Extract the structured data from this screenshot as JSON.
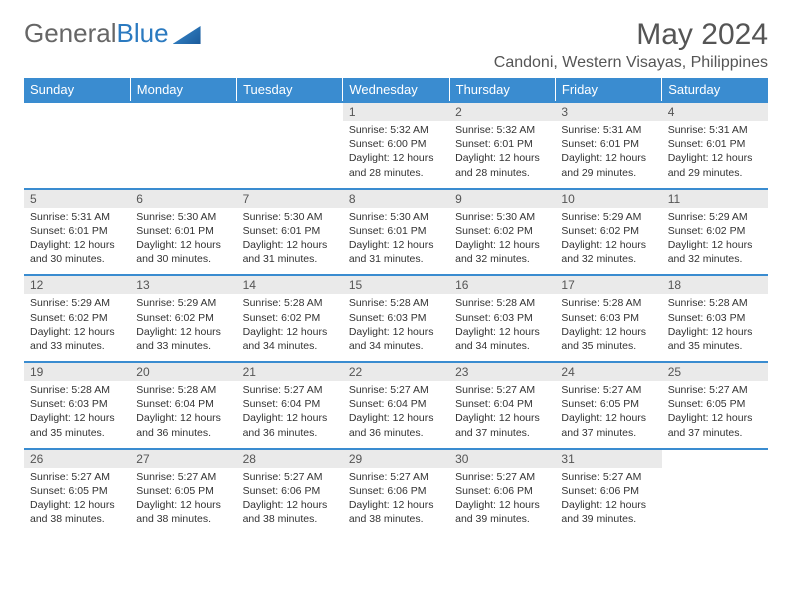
{
  "logo": {
    "part1": "General",
    "part2": "Blue"
  },
  "title": "May 2024",
  "location": "Candoni, Western Visayas, Philippines",
  "colors": {
    "header_bg": "#3a8cd0",
    "daynum_bg": "#eaeaea",
    "border": "#3a8cd0",
    "text": "#333333"
  },
  "weekdays": [
    "Sunday",
    "Monday",
    "Tuesday",
    "Wednesday",
    "Thursday",
    "Friday",
    "Saturday"
  ],
  "weeks": [
    [
      {
        "n": "",
        "lines": []
      },
      {
        "n": "",
        "lines": []
      },
      {
        "n": "",
        "lines": []
      },
      {
        "n": "1",
        "lines": [
          "Sunrise: 5:32 AM",
          "Sunset: 6:00 PM",
          "Daylight: 12 hours",
          "and 28 minutes."
        ]
      },
      {
        "n": "2",
        "lines": [
          "Sunrise: 5:32 AM",
          "Sunset: 6:01 PM",
          "Daylight: 12 hours",
          "and 28 minutes."
        ]
      },
      {
        "n": "3",
        "lines": [
          "Sunrise: 5:31 AM",
          "Sunset: 6:01 PM",
          "Daylight: 12 hours",
          "and 29 minutes."
        ]
      },
      {
        "n": "4",
        "lines": [
          "Sunrise: 5:31 AM",
          "Sunset: 6:01 PM",
          "Daylight: 12 hours",
          "and 29 minutes."
        ]
      }
    ],
    [
      {
        "n": "5",
        "lines": [
          "Sunrise: 5:31 AM",
          "Sunset: 6:01 PM",
          "Daylight: 12 hours",
          "and 30 minutes."
        ]
      },
      {
        "n": "6",
        "lines": [
          "Sunrise: 5:30 AM",
          "Sunset: 6:01 PM",
          "Daylight: 12 hours",
          "and 30 minutes."
        ]
      },
      {
        "n": "7",
        "lines": [
          "Sunrise: 5:30 AM",
          "Sunset: 6:01 PM",
          "Daylight: 12 hours",
          "and 31 minutes."
        ]
      },
      {
        "n": "8",
        "lines": [
          "Sunrise: 5:30 AM",
          "Sunset: 6:01 PM",
          "Daylight: 12 hours",
          "and 31 minutes."
        ]
      },
      {
        "n": "9",
        "lines": [
          "Sunrise: 5:30 AM",
          "Sunset: 6:02 PM",
          "Daylight: 12 hours",
          "and 32 minutes."
        ]
      },
      {
        "n": "10",
        "lines": [
          "Sunrise: 5:29 AM",
          "Sunset: 6:02 PM",
          "Daylight: 12 hours",
          "and 32 minutes."
        ]
      },
      {
        "n": "11",
        "lines": [
          "Sunrise: 5:29 AM",
          "Sunset: 6:02 PM",
          "Daylight: 12 hours",
          "and 32 minutes."
        ]
      }
    ],
    [
      {
        "n": "12",
        "lines": [
          "Sunrise: 5:29 AM",
          "Sunset: 6:02 PM",
          "Daylight: 12 hours",
          "and 33 minutes."
        ]
      },
      {
        "n": "13",
        "lines": [
          "Sunrise: 5:29 AM",
          "Sunset: 6:02 PM",
          "Daylight: 12 hours",
          "and 33 minutes."
        ]
      },
      {
        "n": "14",
        "lines": [
          "Sunrise: 5:28 AM",
          "Sunset: 6:02 PM",
          "Daylight: 12 hours",
          "and 34 minutes."
        ]
      },
      {
        "n": "15",
        "lines": [
          "Sunrise: 5:28 AM",
          "Sunset: 6:03 PM",
          "Daylight: 12 hours",
          "and 34 minutes."
        ]
      },
      {
        "n": "16",
        "lines": [
          "Sunrise: 5:28 AM",
          "Sunset: 6:03 PM",
          "Daylight: 12 hours",
          "and 34 minutes."
        ]
      },
      {
        "n": "17",
        "lines": [
          "Sunrise: 5:28 AM",
          "Sunset: 6:03 PM",
          "Daylight: 12 hours",
          "and 35 minutes."
        ]
      },
      {
        "n": "18",
        "lines": [
          "Sunrise: 5:28 AM",
          "Sunset: 6:03 PM",
          "Daylight: 12 hours",
          "and 35 minutes."
        ]
      }
    ],
    [
      {
        "n": "19",
        "lines": [
          "Sunrise: 5:28 AM",
          "Sunset: 6:03 PM",
          "Daylight: 12 hours",
          "and 35 minutes."
        ]
      },
      {
        "n": "20",
        "lines": [
          "Sunrise: 5:28 AM",
          "Sunset: 6:04 PM",
          "Daylight: 12 hours",
          "and 36 minutes."
        ]
      },
      {
        "n": "21",
        "lines": [
          "Sunrise: 5:27 AM",
          "Sunset: 6:04 PM",
          "Daylight: 12 hours",
          "and 36 minutes."
        ]
      },
      {
        "n": "22",
        "lines": [
          "Sunrise: 5:27 AM",
          "Sunset: 6:04 PM",
          "Daylight: 12 hours",
          "and 36 minutes."
        ]
      },
      {
        "n": "23",
        "lines": [
          "Sunrise: 5:27 AM",
          "Sunset: 6:04 PM",
          "Daylight: 12 hours",
          "and 37 minutes."
        ]
      },
      {
        "n": "24",
        "lines": [
          "Sunrise: 5:27 AM",
          "Sunset: 6:05 PM",
          "Daylight: 12 hours",
          "and 37 minutes."
        ]
      },
      {
        "n": "25",
        "lines": [
          "Sunrise: 5:27 AM",
          "Sunset: 6:05 PM",
          "Daylight: 12 hours",
          "and 37 minutes."
        ]
      }
    ],
    [
      {
        "n": "26",
        "lines": [
          "Sunrise: 5:27 AM",
          "Sunset: 6:05 PM",
          "Daylight: 12 hours",
          "and 38 minutes."
        ]
      },
      {
        "n": "27",
        "lines": [
          "Sunrise: 5:27 AM",
          "Sunset: 6:05 PM",
          "Daylight: 12 hours",
          "and 38 minutes."
        ]
      },
      {
        "n": "28",
        "lines": [
          "Sunrise: 5:27 AM",
          "Sunset: 6:06 PM",
          "Daylight: 12 hours",
          "and 38 minutes."
        ]
      },
      {
        "n": "29",
        "lines": [
          "Sunrise: 5:27 AM",
          "Sunset: 6:06 PM",
          "Daylight: 12 hours",
          "and 38 minutes."
        ]
      },
      {
        "n": "30",
        "lines": [
          "Sunrise: 5:27 AM",
          "Sunset: 6:06 PM",
          "Daylight: 12 hours",
          "and 39 minutes."
        ]
      },
      {
        "n": "31",
        "lines": [
          "Sunrise: 5:27 AM",
          "Sunset: 6:06 PM",
          "Daylight: 12 hours",
          "and 39 minutes."
        ]
      },
      {
        "n": "",
        "lines": []
      }
    ]
  ]
}
